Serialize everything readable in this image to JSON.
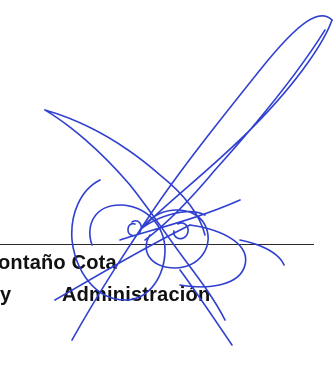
{
  "signature_block": {
    "name_line": "ontaño Cota",
    "title_conj": "y",
    "title_dept": "Administración"
  },
  "colors": {
    "ink": "#2f3fd0",
    "line": "#2a2a2a",
    "text": "#111111"
  }
}
